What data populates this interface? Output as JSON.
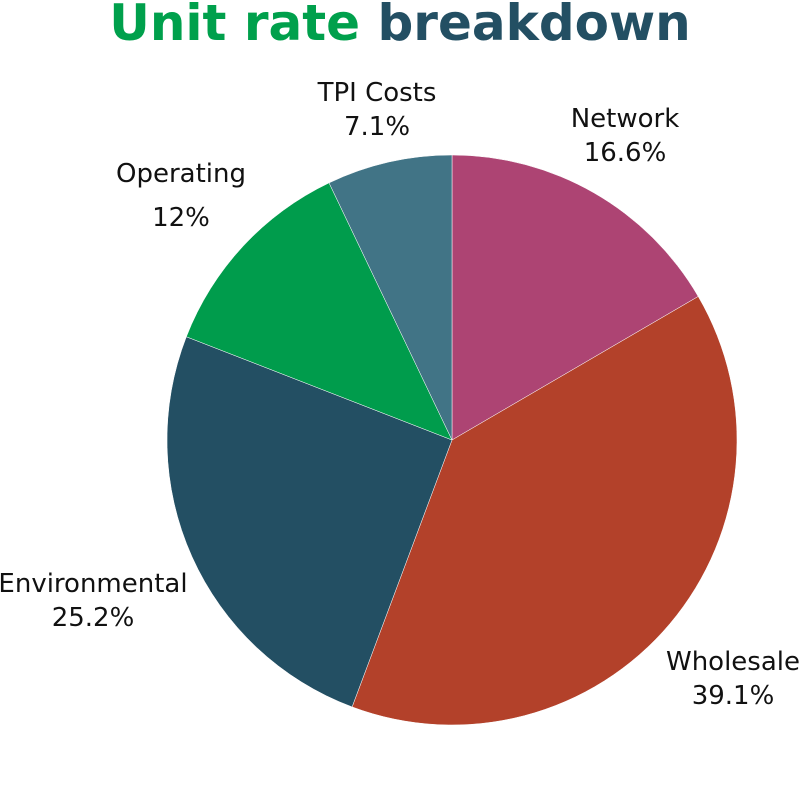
{
  "title": {
    "part1": "Unit rate",
    "part2": "breakdown",
    "color1": "#00a04c",
    "color2": "#234f63"
  },
  "chart_data": {
    "type": "pie",
    "title": "Unit rate breakdown",
    "categories": [
      "Network",
      "Wholesale",
      "Environmental",
      "Operating",
      "TPI Costs"
    ],
    "values": [
      16.6,
      39.1,
      25.2,
      12,
      7.1
    ],
    "value_labels": [
      "16.6%",
      "39.1%",
      "25.2%",
      "12%",
      "7.1%"
    ],
    "colors": [
      "#ad4473",
      "#b3412a",
      "#234f63",
      "#009c4c",
      "#417486"
    ],
    "start_angle": "12 o'clock, clockwise",
    "legend": "none (data labels outside)"
  },
  "labels": {
    "network": {
      "name": "Network",
      "value": "16.6%"
    },
    "wholesale": {
      "name": "Wholesale",
      "value": "39.1%"
    },
    "environmental": {
      "name": "Environmental",
      "value": "25.2%"
    },
    "operating": {
      "name": "Operating",
      "value": "12%"
    },
    "tpi": {
      "name": "TPI Costs",
      "value": "7.1%"
    }
  }
}
